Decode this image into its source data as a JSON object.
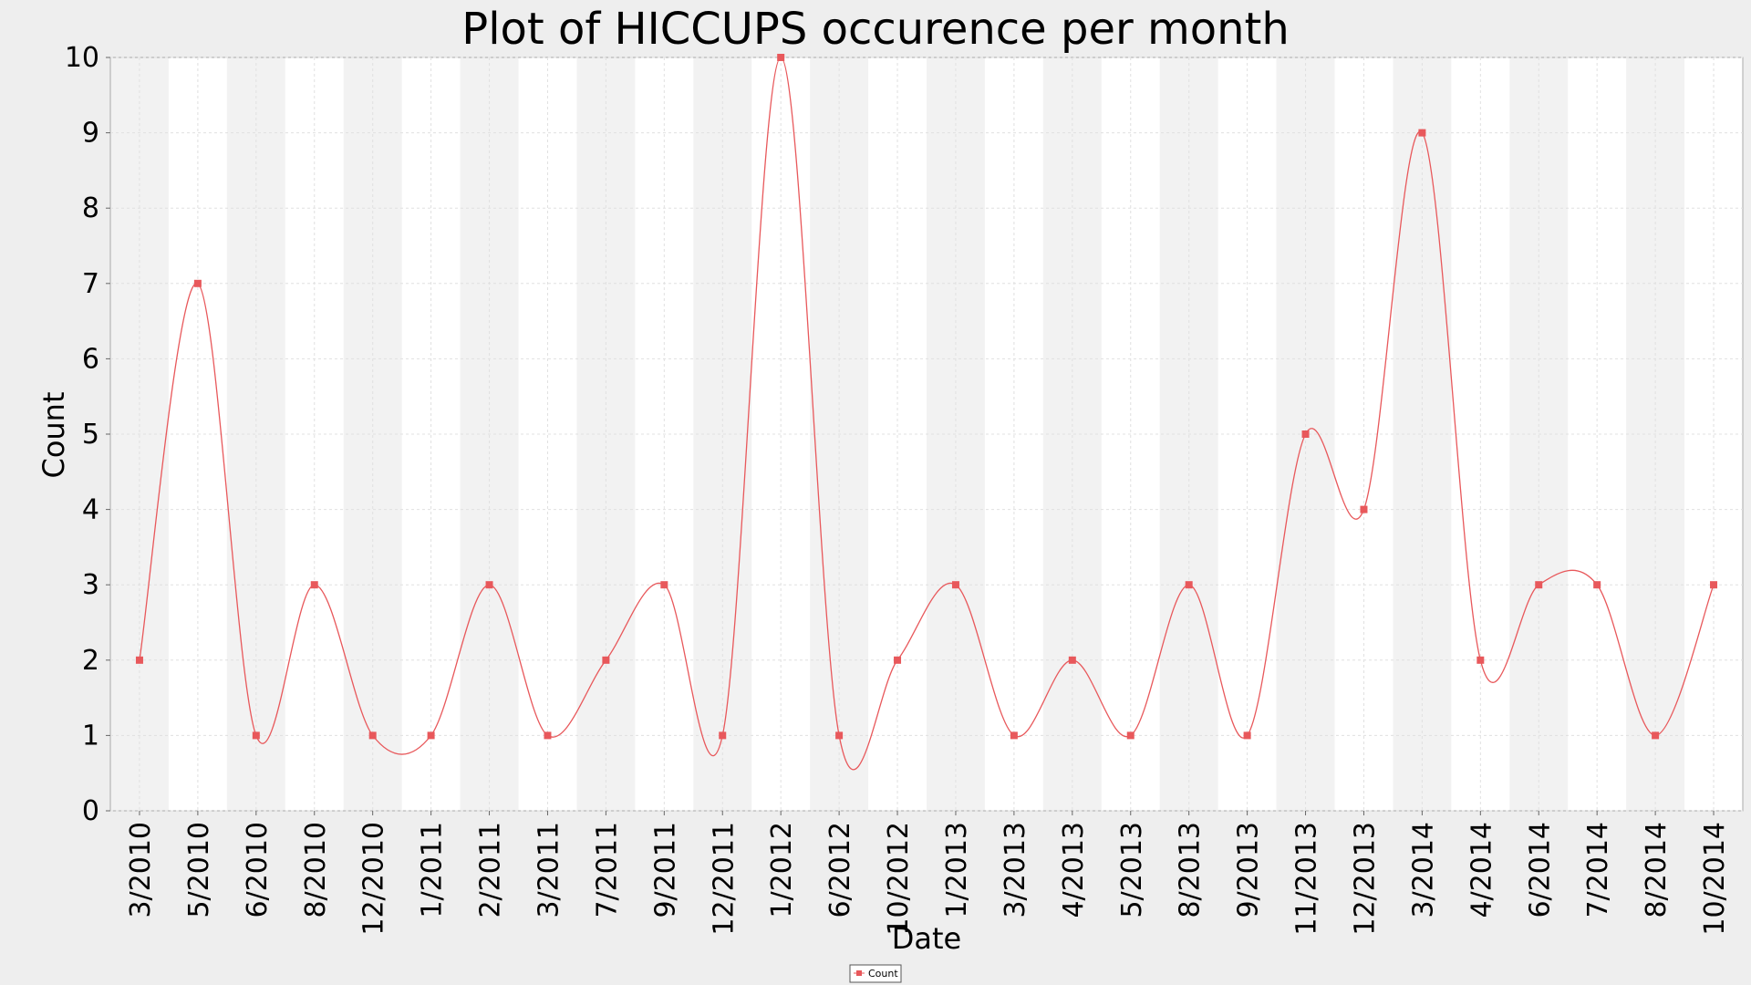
{
  "chart_data": {
    "type": "line",
    "title": "Plot of HICCUPS occurence per month",
    "xlabel": "Date",
    "ylabel": "Count",
    "categories": [
      "3/2010",
      "5/2010",
      "6/2010",
      "8/2010",
      "12/2010",
      "1/2011",
      "2/2011",
      "3/2011",
      "7/2011",
      "9/2011",
      "12/2011",
      "1/2012",
      "6/2012",
      "10/2012",
      "1/2013",
      "3/2013",
      "4/2013",
      "5/2013",
      "8/2013",
      "9/2013",
      "11/2013",
      "12/2013",
      "3/2014",
      "4/2014",
      "6/2014",
      "7/2014",
      "8/2014",
      "10/2014"
    ],
    "series": [
      {
        "name": "Count",
        "color": "#e8585b",
        "values": [
          2,
          7,
          1,
          3,
          1,
          1,
          3,
          1,
          2,
          3,
          1,
          10,
          1,
          2,
          3,
          1,
          2,
          1,
          3,
          1,
          5,
          4,
          9,
          2,
          3,
          3,
          1,
          3
        ]
      }
    ],
    "ylim": [
      0,
      10
    ],
    "yticks": [
      0,
      1,
      2,
      3,
      4,
      5,
      6,
      7,
      8,
      9,
      10
    ],
    "grid": true,
    "legend_position": "bottom-center",
    "smooth_line": true,
    "colors": {
      "line": "#e8585b",
      "band_alt": "#f2f2f2",
      "band": "#ffffff",
      "background": "#eeeeee",
      "grid": "#e0e0e0"
    }
  }
}
